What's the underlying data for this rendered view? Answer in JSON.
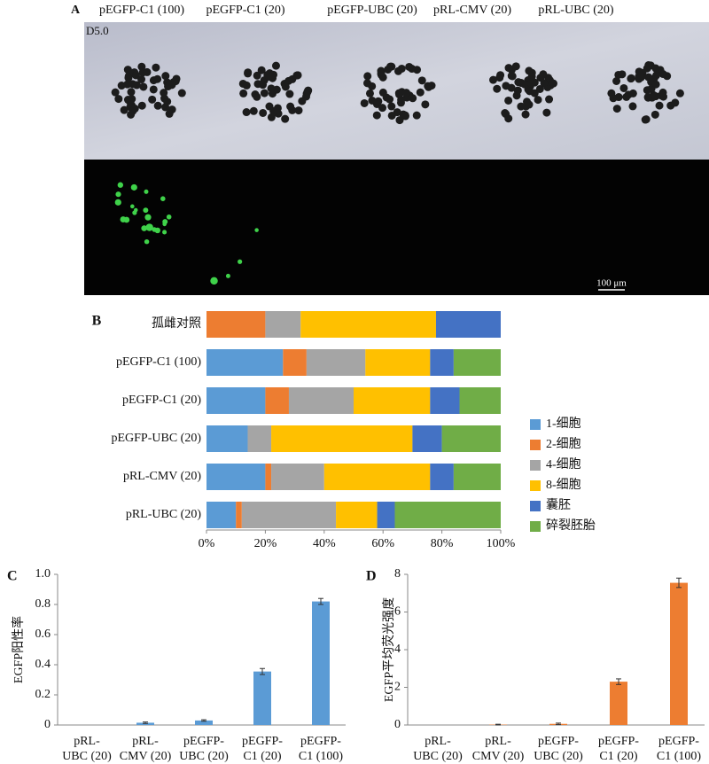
{
  "panel_a": {
    "label": "A",
    "columns": [
      "pEGFP-C1 (100)",
      "pEGFP-C1 (20)",
      "pEGFP-UBC (20)",
      "pRL-CMV (20)",
      "pRL-UBC (20)"
    ],
    "day": "D5.0",
    "scale": "100 μm"
  },
  "chart_data": [
    {
      "type": "bar",
      "label": "B",
      "orientation": "horizontal",
      "stacked": true,
      "categories": [
        "孤雌对照",
        "pEGFP-C1 (100)",
        "pEGFP-C1 (20)",
        "pEGFP-UBC (20)",
        "pRL-CMV (20)",
        "pRL-UBC (20)"
      ],
      "series": [
        {
          "name": "1-细胞",
          "color": "#5b9bd5",
          "values": [
            0,
            26,
            20,
            14,
            20,
            10
          ]
        },
        {
          "name": "2-细胞",
          "color": "#ed7d31",
          "values": [
            20,
            8,
            8,
            0,
            2,
            2
          ]
        },
        {
          "name": "4-细胞",
          "color": "#a5a5a5",
          "values": [
            12,
            20,
            22,
            8,
            18,
            32
          ]
        },
        {
          "name": "8-细胞",
          "color": "#ffc000",
          "values": [
            46,
            22,
            26,
            48,
            36,
            14
          ]
        },
        {
          "name": "囊胚",
          "color": "#4472c4",
          "values": [
            22,
            8,
            10,
            10,
            8,
            6
          ]
        },
        {
          "name": "碎裂胚胎",
          "color": "#70ad47",
          "values": [
            0,
            16,
            14,
            20,
            16,
            36
          ]
        }
      ],
      "xlim": [
        0,
        100
      ],
      "xticks": [
        {
          "value": 0,
          "label": "0%"
        },
        {
          "value": 20,
          "label": "20%"
        },
        {
          "value": 40,
          "label": "40%"
        },
        {
          "value": 60,
          "label": "60%"
        },
        {
          "value": 80,
          "label": "80%"
        },
        {
          "value": 100,
          "label": "100%"
        }
      ],
      "legend": "right"
    },
    {
      "type": "bar",
      "label": "C",
      "orientation": "vertical",
      "color": "#5b9bd5",
      "ylabel": "EGFP阳性率",
      "categories": [
        "pRL-\nUBC (20)",
        "pRL-\nCMV (20)",
        "pEGFP-\nUBC (20)",
        "pEGFP-\nC1 (20)",
        "pEGFP-\nC1 (100)"
      ],
      "values": [
        0,
        0.015,
        0.03,
        0.355,
        0.82
      ],
      "errors": [
        0,
        0.005,
        0.005,
        0.02,
        0.02
      ],
      "ylim": [
        0,
        1
      ],
      "yticks": [
        0,
        0.2,
        0.4,
        0.6,
        0.8,
        {
          "value": 1,
          "label": "1.0"
        }
      ]
    },
    {
      "type": "bar",
      "label": "D",
      "orientation": "vertical",
      "color": "#ed7d31",
      "ylabel": "EGFP平均荧光强度",
      "categories": [
        "pRL-\nUBC (20)",
        "pRL-\nCMV (20)",
        "pEGFP-\nUBC (20)",
        "pEGFP-\nC1 (20)",
        "pEGFP-\nC1 (100)"
      ],
      "values": [
        0,
        0.02,
        0.06,
        2.3,
        7.55
      ],
      "errors": [
        0,
        0.02,
        0.04,
        0.15,
        0.25
      ],
      "ylim": [
        0,
        8
      ],
      "yticks": [
        0,
        2,
        4,
        6,
        8
      ]
    }
  ]
}
